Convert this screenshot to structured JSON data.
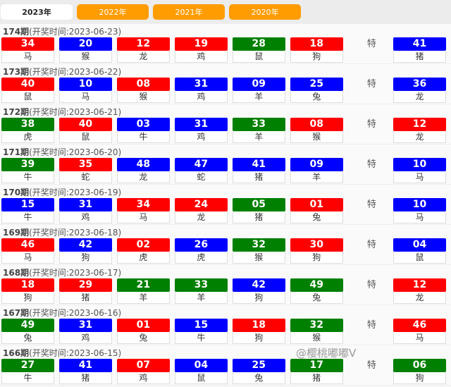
{
  "tabs": [
    {
      "label": "2023年",
      "active": true
    },
    {
      "label": "2022年"
    },
    {
      "label": "2021年"
    },
    {
      "label": "2020年"
    }
  ],
  "colors": {
    "red": "#ff0000",
    "blue": "#0000ff",
    "green": "#008000"
  },
  "special_label": "特",
  "watermark": "@樱桃嘟嘟V",
  "draws": [
    {
      "issue": "174期",
      "date": "(开奖时间:2023-06-23)",
      "balls": [
        [
          "34",
          "马",
          "red"
        ],
        [
          "20",
          "猴",
          "blue"
        ],
        [
          "12",
          "龙",
          "red"
        ],
        [
          "19",
          "鸡",
          "red"
        ],
        [
          "28",
          "鼠",
          "green"
        ],
        [
          "18",
          "狗",
          "red"
        ]
      ],
      "special": [
        "41",
        "猪",
        "blue"
      ]
    },
    {
      "issue": "173期",
      "date": "(开奖时间:2023-06-22)",
      "balls": [
        [
          "40",
          "鼠",
          "red"
        ],
        [
          "10",
          "马",
          "blue"
        ],
        [
          "08",
          "猴",
          "red"
        ],
        [
          "31",
          "鸡",
          "blue"
        ],
        [
          "09",
          "羊",
          "blue"
        ],
        [
          "25",
          "兔",
          "blue"
        ]
      ],
      "special": [
        "36",
        "龙",
        "blue"
      ]
    },
    {
      "issue": "172期",
      "date": "(开奖时间:2023-06-21)",
      "balls": [
        [
          "38",
          "虎",
          "green"
        ],
        [
          "40",
          "鼠",
          "red"
        ],
        [
          "03",
          "牛",
          "blue"
        ],
        [
          "31",
          "鸡",
          "blue"
        ],
        [
          "33",
          "羊",
          "green"
        ],
        [
          "08",
          "猴",
          "red"
        ]
      ],
      "special": [
        "12",
        "龙",
        "red"
      ]
    },
    {
      "issue": "171期",
      "date": "(开奖时间:2023-06-20)",
      "balls": [
        [
          "39",
          "牛",
          "green"
        ],
        [
          "35",
          "蛇",
          "red"
        ],
        [
          "48",
          "龙",
          "blue"
        ],
        [
          "47",
          "蛇",
          "blue"
        ],
        [
          "41",
          "猪",
          "blue"
        ],
        [
          "09",
          "羊",
          "blue"
        ]
      ],
      "special": [
        "10",
        "马",
        "blue"
      ]
    },
    {
      "issue": "170期",
      "date": "(开奖时间:2023-06-19)",
      "balls": [
        [
          "15",
          "牛",
          "blue"
        ],
        [
          "31",
          "鸡",
          "blue"
        ],
        [
          "34",
          "马",
          "red"
        ],
        [
          "24",
          "龙",
          "red"
        ],
        [
          "05",
          "猪",
          "green"
        ],
        [
          "01",
          "兔",
          "red"
        ]
      ],
      "special": [
        "10",
        "马",
        "blue"
      ]
    },
    {
      "issue": "169期",
      "date": "(开奖时间:2023-06-18)",
      "balls": [
        [
          "46",
          "马",
          "red"
        ],
        [
          "42",
          "狗",
          "blue"
        ],
        [
          "02",
          "虎",
          "red"
        ],
        [
          "26",
          "虎",
          "blue"
        ],
        [
          "32",
          "猴",
          "green"
        ],
        [
          "30",
          "狗",
          "red"
        ]
      ],
      "special": [
        "04",
        "鼠",
        "blue"
      ]
    },
    {
      "issue": "168期",
      "date": "(开奖时间:2023-06-17)",
      "balls": [
        [
          "18",
          "狗",
          "red"
        ],
        [
          "29",
          "猪",
          "red"
        ],
        [
          "21",
          "羊",
          "green"
        ],
        [
          "33",
          "羊",
          "green"
        ],
        [
          "42",
          "狗",
          "blue"
        ],
        [
          "49",
          "兔",
          "green"
        ]
      ],
      "special": [
        "12",
        "龙",
        "red"
      ]
    },
    {
      "issue": "167期",
      "date": "(开奖时间:2023-06-16)",
      "balls": [
        [
          "49",
          "兔",
          "green"
        ],
        [
          "31",
          "鸡",
          "blue"
        ],
        [
          "01",
          "兔",
          "red"
        ],
        [
          "15",
          "牛",
          "blue"
        ],
        [
          "18",
          "狗",
          "red"
        ],
        [
          "32",
          "猴",
          "green"
        ]
      ],
      "special": [
        "46",
        "马",
        "red"
      ]
    },
    {
      "issue": "166期",
      "date": "(开奖时间:2023-06-15)",
      "balls": [
        [
          "27",
          "牛",
          "green"
        ],
        [
          "41",
          "猪",
          "blue"
        ],
        [
          "07",
          "鸡",
          "red"
        ],
        [
          "04",
          "鼠",
          "blue"
        ],
        [
          "25",
          "兔",
          "blue"
        ],
        [
          "17",
          "猪",
          "green"
        ]
      ],
      "special": [
        "06",
        "狗",
        "green"
      ]
    }
  ]
}
